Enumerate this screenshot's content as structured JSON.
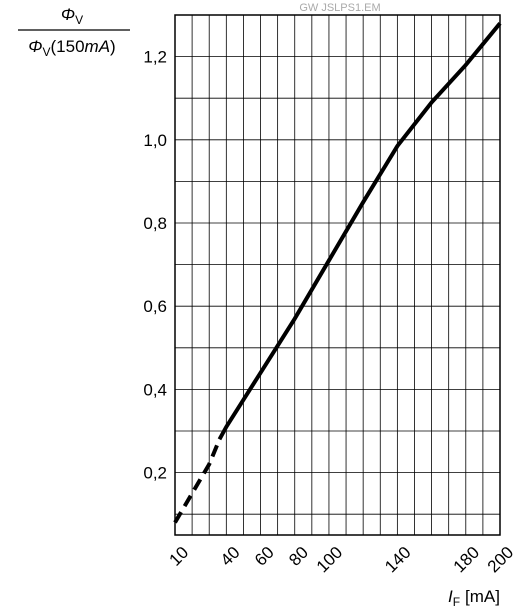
{
  "chart_data": {
    "type": "line",
    "title": "GW JSLPS1.EM",
    "y_label": {
      "numerator": {
        "symbol": "Φ",
        "subscript": "V"
      },
      "denominator": {
        "symbol": "Φ",
        "subscript": "V",
        "text": "(150",
        "unit": "mA",
        "close": ")"
      }
    },
    "x_label": {
      "symbol": "I",
      "subscript": "F",
      "unit": "[mA]"
    },
    "xlim": [
      10,
      200
    ],
    "xticks": [
      10,
      40,
      60,
      80,
      100,
      140,
      180,
      200
    ],
    "xgrid": [
      10,
      20,
      30,
      40,
      50,
      60,
      70,
      80,
      90,
      100,
      110,
      120,
      130,
      140,
      150,
      160,
      170,
      180,
      190,
      200
    ],
    "ylim": [
      0.05,
      1.3
    ],
    "yticks": [
      {
        "value": 0.2,
        "label": "0,2"
      },
      {
        "value": 0.4,
        "label": "0,4"
      },
      {
        "value": 0.6,
        "label": "0,6"
      },
      {
        "value": 0.8,
        "label": "0,8"
      },
      {
        "value": 1.0,
        "label": "1,0"
      },
      {
        "value": 1.2,
        "label": "1,2"
      }
    ],
    "ygrid": [
      0.1,
      0.2,
      0.3,
      0.4,
      0.5,
      0.6,
      0.7,
      0.8,
      0.9,
      1.0,
      1.1,
      1.2
    ],
    "grid": true,
    "series": [
      {
        "color": "#000000",
        "dashed": true,
        "x": [
          10,
          20,
          30,
          36
        ],
        "values": [
          0.08,
          0.15,
          0.22,
          0.28
        ]
      },
      {
        "color": "#000000",
        "dashed": false,
        "x": [
          36,
          40,
          60,
          80,
          100,
          120,
          140,
          160,
          180,
          200
        ],
        "values": [
          0.28,
          0.31,
          0.44,
          0.57,
          0.71,
          0.85,
          0.985,
          1.09,
          1.18,
          1.28
        ]
      }
    ]
  }
}
